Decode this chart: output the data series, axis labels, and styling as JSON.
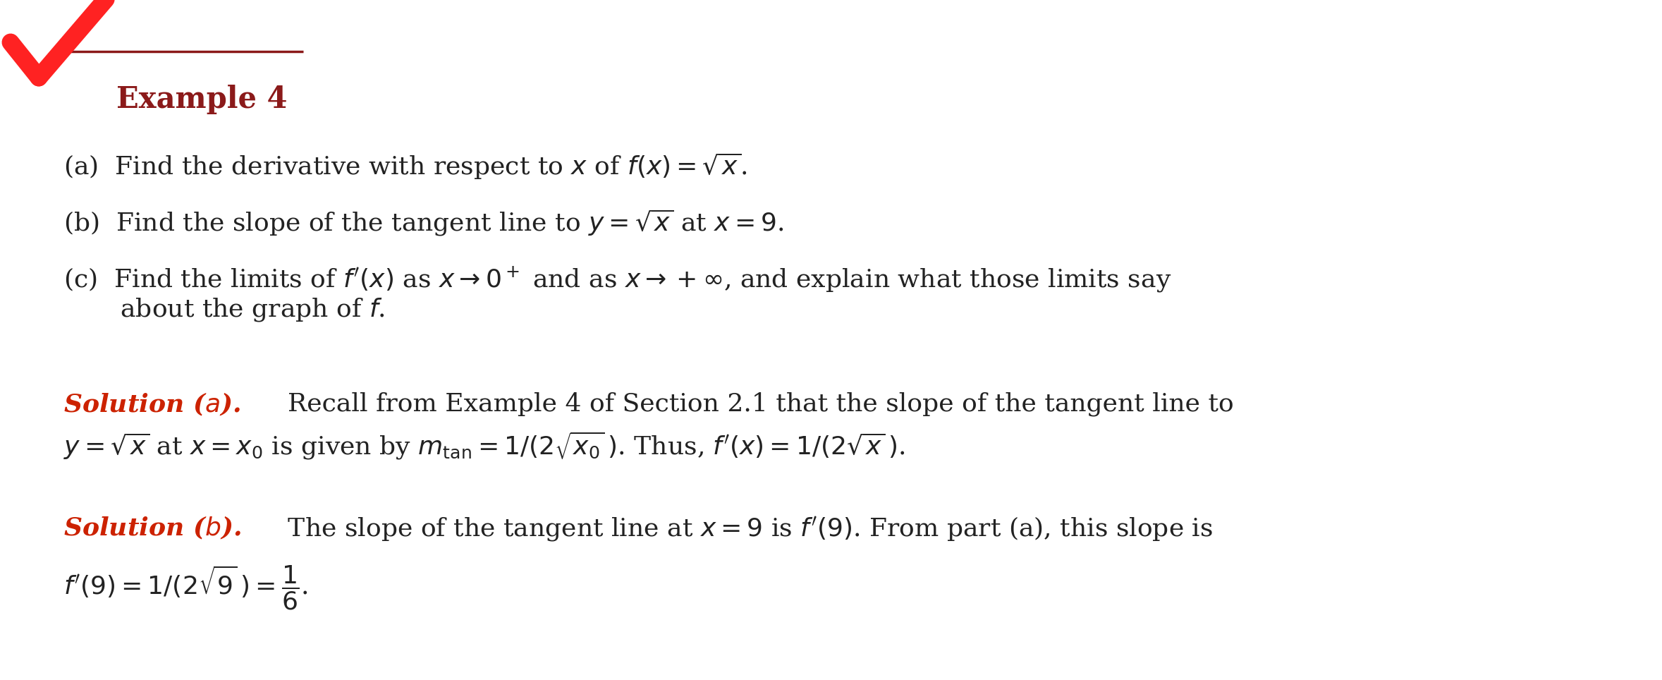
{
  "title": "Example 4",
  "title_color": "#8B1A1A",
  "checkmark_color": "#FF2222",
  "line_color": "#8B1A1A",
  "text_color": "#222222",
  "solution_color": "#CC2200",
  "background_color": "#ffffff",
  "line_a": "(a)  Find the derivative with respect to $x$ of $f(x) = \\sqrt{x}$.",
  "line_b": "(b)  Find the slope of the tangent line to $y = \\sqrt{x}$ at $x = 9$.",
  "line_c1": "(c)  Find the limits of $f'(x)$ as $x \\to 0^+$ and as $x \\to +\\infty$, and explain what those limits say",
  "line_c2": "       about the graph of $f$.",
  "sol_a_label": "Solution ($a$).",
  "sol_a_text": "  Recall from Example 4 of Section 2.1 that the slope of the tangent line to",
  "sol_a_line2": "$y = \\sqrt{x}$ at $x = x_0$ is given by $m_{\\mathrm{tan}} = 1/(2\\sqrt{x_0}\\,)$. Thus, $f'(x) = 1/(2\\sqrt{x}\\,)$.",
  "sol_b_label": "Solution ($b$).",
  "sol_b_text": "  The slope of the tangent line at $x = 9$ is $f'(9)$. From part (a), this slope is",
  "sol_b_line2": "$f'(9) = 1/(2\\sqrt{9}\\,) = \\dfrac{1}{6}$.",
  "fontsize_main": 26,
  "fontsize_title": 30,
  "fontsize_solution": 26
}
